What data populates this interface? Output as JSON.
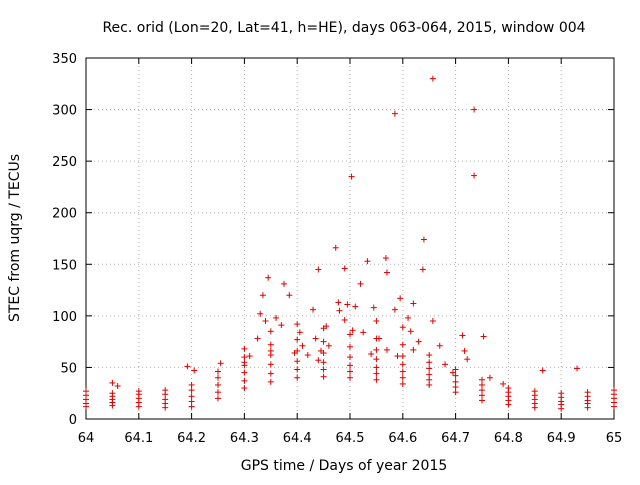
{
  "chart_data": {
    "type": "scatter",
    "title": "Rec. orid (Lon=20, Lat=41, h=HE), days 063-064, 2015, window 004",
    "xlabel": "GPS time / Days of year 2015",
    "ylabel": "STEC from uqrg / TECUs",
    "xlim": [
      64,
      65
    ],
    "ylim": [
      0,
      350
    ],
    "xticks": [
      "64",
      "64.1",
      "64.2",
      "64.3",
      "64.4",
      "64.5",
      "64.6",
      "64.7",
      "64.8",
      "64.9",
      "65"
    ],
    "yticks": [
      "0",
      "50",
      "100",
      "150",
      "200",
      "250",
      "300",
      "350"
    ],
    "grid": true,
    "marker": "+",
    "color": "#e00000",
    "outliers": [
      {
        "x": 64.657,
        "y": 330
      },
      {
        "x": 64.735,
        "y": 300
      },
      {
        "x": 64.585,
        "y": 296
      },
      {
        "x": 64.503,
        "y": 235
      },
      {
        "x": 64.735,
        "y": 236
      },
      {
        "x": 64.64,
        "y": 174
      },
      {
        "x": 64.473,
        "y": 166
      },
      {
        "x": 64.568,
        "y": 156
      },
      {
        "x": 64.533,
        "y": 153
      },
      {
        "x": 64.49,
        "y": 146
      },
      {
        "x": 64.44,
        "y": 145
      },
      {
        "x": 64.638,
        "y": 145
      },
      {
        "x": 64.57,
        "y": 142
      },
      {
        "x": 64.345,
        "y": 137
      },
      {
        "x": 64.375,
        "y": 131
      },
      {
        "x": 64.52,
        "y": 131
      },
      {
        "x": 64.335,
        "y": 120
      },
      {
        "x": 64.385,
        "y": 120
      },
      {
        "x": 64.595,
        "y": 117
      },
      {
        "x": 64.62,
        "y": 112
      },
      {
        "x": 64.478,
        "y": 113
      },
      {
        "x": 64.495,
        "y": 111
      },
      {
        "x": 64.51,
        "y": 109
      },
      {
        "x": 64.545,
        "y": 108
      },
      {
        "x": 64.585,
        "y": 106
      },
      {
        "x": 64.43,
        "y": 106
      },
      {
        "x": 64.48,
        "y": 105
      },
      {
        "x": 64.713,
        "y": 81
      },
      {
        "x": 64.753,
        "y": 80
      },
      {
        "x": 64.717,
        "y": 66
      },
      {
        "x": 64.722,
        "y": 58
      },
      {
        "x": 64.657,
        "y": 95
      },
      {
        "x": 64.93,
        "y": 49
      },
      {
        "x": 64.865,
        "y": 47
      },
      {
        "x": 64.79,
        "y": 34
      },
      {
        "x": 64.765,
        "y": 40
      },
      {
        "x": 64.05,
        "y": 35
      },
      {
        "x": 64.06,
        "y": 32
      },
      {
        "x": 64.192,
        "y": 51
      },
      {
        "x": 64.205,
        "y": 47
      },
      {
        "x": 64.255,
        "y": 54
      },
      {
        "x": 64.325,
        "y": 78
      },
      {
        "x": 64.34,
        "y": 95
      },
      {
        "x": 64.36,
        "y": 98
      },
      {
        "x": 64.37,
        "y": 91
      },
      {
        "x": 64.33,
        "y": 102
      },
      {
        "x": 64.405,
        "y": 84
      },
      {
        "x": 64.455,
        "y": 90
      },
      {
        "x": 64.46,
        "y": 71
      },
      {
        "x": 64.49,
        "y": 96
      },
      {
        "x": 64.505,
        "y": 86
      },
      {
        "x": 64.525,
        "y": 84
      },
      {
        "x": 64.55,
        "y": 95
      },
      {
        "x": 64.555,
        "y": 78
      },
      {
        "x": 64.6,
        "y": 89
      },
      {
        "x": 64.61,
        "y": 98
      },
      {
        "x": 64.615,
        "y": 85
      },
      {
        "x": 64.62,
        "y": 67
      },
      {
        "x": 64.63,
        "y": 75
      },
      {
        "x": 64.67,
        "y": 71
      },
      {
        "x": 64.68,
        "y": 53
      },
      {
        "x": 64.695,
        "y": 45
      },
      {
        "x": 64.41,
        "y": 71
      },
      {
        "x": 64.42,
        "y": 62
      },
      {
        "x": 64.435,
        "y": 78
      },
      {
        "x": 64.445,
        "y": 66
      },
      {
        "x": 64.395,
        "y": 64
      },
      {
        "x": 64.57,
        "y": 67
      },
      {
        "x": 64.59,
        "y": 61
      },
      {
        "x": 64.35,
        "y": 66
      },
      {
        "x": 64.31,
        "y": 61
      },
      {
        "x": 64.3,
        "y": 55
      },
      {
        "x": 64.54,
        "y": 63
      },
      {
        "x": 64.44,
        "y": 57
      }
    ],
    "tracks": [
      {
        "name": "",
        "points": [
          {
            "x": 64.0,
            "y": 12
          },
          {
            "x": 64.05,
            "y": 13
          },
          {
            "x": 64.1,
            "y": 12
          },
          {
            "x": 64.15,
            "y": 11
          },
          {
            "x": 64.2,
            "y": 12
          },
          {
            "x": 64.25,
            "y": 20
          },
          {
            "x": 64.3,
            "y": 30
          },
          {
            "x": 64.35,
            "y": 36
          },
          {
            "x": 64.4,
            "y": 40
          },
          {
            "x": 64.45,
            "y": 41
          },
          {
            "x": 64.5,
            "y": 40
          },
          {
            "x": 64.55,
            "y": 38
          },
          {
            "x": 64.6,
            "y": 34
          },
          {
            "x": 64.65,
            "y": 33
          },
          {
            "x": 64.7,
            "y": 26
          },
          {
            "x": 64.75,
            "y": 18
          },
          {
            "x": 64.8,
            "y": 14
          },
          {
            "x": 64.85,
            "y": 11
          },
          {
            "x": 64.9,
            "y": 10
          },
          {
            "x": 64.95,
            "y": 11
          },
          {
            "x": 65.0,
            "y": 12
          }
        ]
      },
      {
        "name": "",
        "points": [
          {
            "x": 64.0,
            "y": 15
          },
          {
            "x": 64.05,
            "y": 16
          },
          {
            "x": 64.1,
            "y": 16
          },
          {
            "x": 64.15,
            "y": 15
          },
          {
            "x": 64.2,
            "y": 17
          },
          {
            "x": 64.25,
            "y": 26
          },
          {
            "x": 64.3,
            "y": 37
          },
          {
            "x": 64.35,
            "y": 44
          },
          {
            "x": 64.4,
            "y": 48
          },
          {
            "x": 64.45,
            "y": 48
          },
          {
            "x": 64.5,
            "y": 46
          },
          {
            "x": 64.55,
            "y": 44
          },
          {
            "x": 64.6,
            "y": 40
          },
          {
            "x": 64.65,
            "y": 38
          },
          {
            "x": 64.7,
            "y": 31
          },
          {
            "x": 64.75,
            "y": 23
          },
          {
            "x": 64.8,
            "y": 18
          },
          {
            "x": 64.85,
            "y": 15
          },
          {
            "x": 64.9,
            "y": 14
          },
          {
            "x": 64.95,
            "y": 15
          },
          {
            "x": 65.0,
            "y": 16
          }
        ]
      },
      {
        "name": "",
        "points": [
          {
            "x": 64.0,
            "y": 19
          },
          {
            "x": 64.05,
            "y": 19
          },
          {
            "x": 64.1,
            "y": 20
          },
          {
            "x": 64.15,
            "y": 19
          },
          {
            "x": 64.2,
            "y": 22
          },
          {
            "x": 64.25,
            "y": 33
          },
          {
            "x": 64.3,
            "y": 45
          },
          {
            "x": 64.35,
            "y": 53
          },
          {
            "x": 64.4,
            "y": 56
          },
          {
            "x": 64.45,
            "y": 55
          },
          {
            "x": 64.5,
            "y": 52
          },
          {
            "x": 64.55,
            "y": 50
          },
          {
            "x": 64.6,
            "y": 46
          },
          {
            "x": 64.65,
            "y": 43
          },
          {
            "x": 64.7,
            "y": 36
          },
          {
            "x": 64.75,
            "y": 28
          },
          {
            "x": 64.8,
            "y": 22
          },
          {
            "x": 64.85,
            "y": 19
          },
          {
            "x": 64.9,
            "y": 17
          },
          {
            "x": 64.95,
            "y": 18
          },
          {
            "x": 65.0,
            "y": 20
          }
        ]
      },
      {
        "name": "",
        "points": [
          {
            "x": 64.0,
            "y": 23
          },
          {
            "x": 64.05,
            "y": 22
          },
          {
            "x": 64.1,
            "y": 24
          },
          {
            "x": 64.15,
            "y": 24
          },
          {
            "x": 64.2,
            "y": 28
          },
          {
            "x": 64.25,
            "y": 40
          },
          {
            "x": 64.3,
            "y": 52
          },
          {
            "x": 64.35,
            "y": 62
          },
          {
            "x": 64.4,
            "y": 66
          },
          {
            "x": 64.45,
            "y": 64
          },
          {
            "x": 64.5,
            "y": 60
          },
          {
            "x": 64.55,
            "y": 58
          },
          {
            "x": 64.6,
            "y": 53
          },
          {
            "x": 64.65,
            "y": 49
          },
          {
            "x": 64.7,
            "y": 42
          },
          {
            "x": 64.75,
            "y": 33
          },
          {
            "x": 64.8,
            "y": 26
          },
          {
            "x": 64.85,
            "y": 23
          },
          {
            "x": 64.9,
            "y": 21
          },
          {
            "x": 64.95,
            "y": 22
          },
          {
            "x": 65.0,
            "y": 24
          }
        ]
      },
      {
        "name": "",
        "points": [
          {
            "x": 64.0,
            "y": 27
          },
          {
            "x": 64.05,
            "y": 25
          },
          {
            "x": 64.1,
            "y": 27
          },
          {
            "x": 64.15,
            "y": 28
          },
          {
            "x": 64.2,
            "y": 33
          },
          {
            "x": 64.25,
            "y": 46
          },
          {
            "x": 64.3,
            "y": 60
          },
          {
            "x": 64.35,
            "y": 72
          },
          {
            "x": 64.4,
            "y": 77
          },
          {
            "x": 64.45,
            "y": 75
          },
          {
            "x": 64.5,
            "y": 70
          },
          {
            "x": 64.55,
            "y": 67
          },
          {
            "x": 64.6,
            "y": 61
          },
          {
            "x": 64.65,
            "y": 55
          },
          {
            "x": 64.7,
            "y": 48
          },
          {
            "x": 64.75,
            "y": 38
          },
          {
            "x": 64.8,
            "y": 30
          },
          {
            "x": 64.85,
            "y": 27
          },
          {
            "x": 64.9,
            "y": 25
          },
          {
            "x": 64.95,
            "y": 26
          },
          {
            "x": 65.0,
            "y": 28
          }
        ]
      },
      {
        "name": "",
        "points": [
          {
            "x": 64.3,
            "y": 68
          },
          {
            "x": 64.35,
            "y": 85
          },
          {
            "x": 64.4,
            "y": 92
          },
          {
            "x": 64.45,
            "y": 88
          },
          {
            "x": 64.5,
            "y": 82
          },
          {
            "x": 64.55,
            "y": 78
          },
          {
            "x": 64.6,
            "y": 72
          },
          {
            "x": 64.65,
            "y": 62
          }
        ]
      }
    ]
  }
}
